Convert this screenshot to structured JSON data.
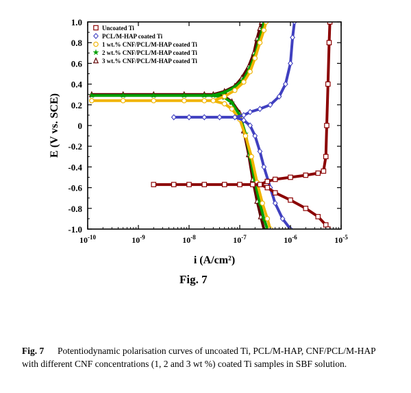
{
  "chart_data": {
    "type": "line",
    "x_scale": "log",
    "xlabel": "i (A/cm²)",
    "ylabel": "E (V vs. SCE)",
    "xlim": [
      1e-10,
      1e-05
    ],
    "ylim": [
      -1.0,
      1.0
    ],
    "x_ticks": [
      1e-10,
      1e-09,
      1e-08,
      1e-07,
      1e-06,
      1e-05
    ],
    "x_tick_labels": [
      {
        "base": "10",
        "exp": "-10"
      },
      {
        "base": "10",
        "exp": "-9"
      },
      {
        "base": "10",
        "exp": "-8"
      },
      {
        "base": "10",
        "exp": "-7"
      },
      {
        "base": "10",
        "exp": "-6"
      },
      {
        "base": "10",
        "exp": "-5"
      }
    ],
    "y_ticks": [
      1.0,
      0.8,
      0.6,
      0.4,
      0.2,
      0,
      -0.2,
      -0.4,
      -0.6,
      -0.8,
      -1.0
    ],
    "y_tick_labels": [
      "1.0",
      "0.8",
      "0.6",
      "0.4",
      "0.2",
      "0",
      "-0.2",
      "-0.4",
      "-0.6",
      "-0.8",
      "-1.0"
    ],
    "grid": false,
    "legend_position": "top-left",
    "series": [
      {
        "name": "Uncoated Ti",
        "color": "#8b0000",
        "marker": "square",
        "ecorr": -0.57,
        "points": [
          [
            2e-09,
            -0.57
          ],
          [
            5e-09,
            -0.57
          ],
          [
            1e-08,
            -0.57
          ],
          [
            2e-08,
            -0.57
          ],
          [
            5e-08,
            -0.57
          ],
          [
            1e-07,
            -0.57
          ],
          [
            1.8e-07,
            -0.57
          ],
          [
            2.5e-07,
            -0.57
          ],
          [
            3.5e-07,
            -0.54
          ],
          [
            5e-07,
            -0.52
          ],
          [
            1e-06,
            -0.5
          ],
          [
            2e-06,
            -0.48
          ],
          [
            3.5e-06,
            -0.46
          ],
          [
            4.5e-06,
            -0.44
          ],
          [
            5e-06,
            -0.3
          ],
          [
            5.2e-06,
            0.0
          ],
          [
            5.5e-06,
            0.4
          ],
          [
            5.8e-06,
            0.8
          ],
          [
            6e-06,
            1.0
          ],
          [
            3.5e-07,
            -0.6
          ],
          [
            5e-07,
            -0.65
          ],
          [
            1e-06,
            -0.72
          ],
          [
            2e-06,
            -0.8
          ],
          [
            3.5e-06,
            -0.88
          ],
          [
            5e-06,
            -0.96
          ],
          [
            5.5e-06,
            -1.0
          ]
        ]
      },
      {
        "name": "PCL/M-HAP coated Ti",
        "color": "#4040c0",
        "marker": "diamond",
        "ecorr": 0.08,
        "points": [
          [
            5e-09,
            0.08
          ],
          [
            1e-08,
            0.08
          ],
          [
            2e-08,
            0.08
          ],
          [
            4e-08,
            0.08
          ],
          [
            8e-08,
            0.08
          ],
          [
            1.2e-07,
            0.1
          ],
          [
            1.6e-07,
            0.13
          ],
          [
            2.5e-07,
            0.16
          ],
          [
            4e-07,
            0.2
          ],
          [
            6e-07,
            0.28
          ],
          [
            8e-07,
            0.4
          ],
          [
            1e-06,
            0.6
          ],
          [
            1.1e-06,
            0.85
          ],
          [
            1.2e-06,
            1.0
          ],
          [
            1.2e-07,
            0.05
          ],
          [
            1.6e-07,
            0.0
          ],
          [
            2e-07,
            -0.1
          ],
          [
            2.5e-07,
            -0.25
          ],
          [
            3e-07,
            -0.4
          ],
          [
            4e-07,
            -0.6
          ],
          [
            5e-07,
            -0.75
          ],
          [
            7e-07,
            -0.9
          ],
          [
            1e-06,
            -1.0
          ]
        ]
      },
      {
        "name": "1 wt.% CNF/PCL/M-HAP coated Ti",
        "color": "#f0b400",
        "marker": "circle",
        "ecorr": 0.24,
        "points": [
          [
            1.2e-10,
            0.24
          ],
          [
            5e-10,
            0.24
          ],
          [
            2e-09,
            0.24
          ],
          [
            8e-09,
            0.24
          ],
          [
            2e-08,
            0.24
          ],
          [
            3e-08,
            0.24
          ],
          [
            5e-08,
            0.28
          ],
          [
            8e-08,
            0.34
          ],
          [
            1.2e-07,
            0.42
          ],
          [
            1.6e-07,
            0.52
          ],
          [
            2e-07,
            0.65
          ],
          [
            2.5e-07,
            0.8
          ],
          [
            3e-07,
            0.92
          ],
          [
            3.3e-07,
            1.0
          ],
          [
            5e-08,
            0.21
          ],
          [
            7e-08,
            0.16
          ],
          [
            1e-07,
            0.06
          ],
          [
            1.3e-07,
            -0.1
          ],
          [
            1.7e-07,
            -0.3
          ],
          [
            2.2e-07,
            -0.55
          ],
          [
            2.8e-07,
            -0.75
          ],
          [
            3.5e-07,
            -0.9
          ],
          [
            4e-07,
            -1.0
          ]
        ]
      },
      {
        "name": "2 wt.% CNF/PCL/M-HAP coated Ti",
        "color": "#00a000",
        "marker": "star",
        "ecorr": 0.29,
        "points": [
          [
            1.2e-10,
            0.29
          ],
          [
            5e-10,
            0.29
          ],
          [
            2e-09,
            0.29
          ],
          [
            8e-09,
            0.29
          ],
          [
            2e-08,
            0.29
          ],
          [
            3e-08,
            0.29
          ],
          [
            5e-08,
            0.32
          ],
          [
            8e-08,
            0.37
          ],
          [
            1.2e-07,
            0.45
          ],
          [
            1.6e-07,
            0.56
          ],
          [
            2e-07,
            0.68
          ],
          [
            2.4e-07,
            0.82
          ],
          [
            2.8e-07,
            0.93
          ],
          [
            3e-07,
            1.0
          ],
          [
            5e-08,
            0.27
          ],
          [
            7e-08,
            0.22
          ],
          [
            1e-07,
            0.1
          ],
          [
            1.3e-07,
            -0.08
          ],
          [
            1.6e-07,
            -0.3
          ],
          [
            2e-07,
            -0.55
          ],
          [
            2.5e-07,
            -0.75
          ],
          [
            3e-07,
            -0.9
          ],
          [
            3.5e-07,
            -1.0
          ]
        ]
      },
      {
        "name": "3 wt.% CNF/PCL/M-HAP coated Ti",
        "color": "#600000",
        "marker": "triangle",
        "ecorr": 0.3,
        "points": [
          [
            1.2e-10,
            0.3
          ],
          [
            5e-10,
            0.3
          ],
          [
            2e-09,
            0.3
          ],
          [
            8e-09,
            0.3
          ],
          [
            2e-08,
            0.3
          ],
          [
            3e-08,
            0.3
          ],
          [
            5e-08,
            0.33
          ],
          [
            8e-08,
            0.38
          ],
          [
            1.1e-07,
            0.46
          ],
          [
            1.5e-07,
            0.57
          ],
          [
            1.9e-07,
            0.7
          ],
          [
            2.2e-07,
            0.84
          ],
          [
            2.5e-07,
            0.94
          ],
          [
            2.7e-07,
            1.0
          ],
          [
            5e-08,
            0.28
          ],
          [
            7e-08,
            0.23
          ],
          [
            1e-07,
            0.12
          ],
          [
            1.2e-07,
            -0.05
          ],
          [
            1.5e-07,
            -0.28
          ],
          [
            1.8e-07,
            -0.52
          ],
          [
            2.2e-07,
            -0.73
          ],
          [
            2.6e-07,
            -0.88
          ],
          [
            3e-07,
            -1.0
          ]
        ]
      }
    ]
  },
  "figure_label": "Fig. 7",
  "caption": {
    "number": "Fig. 7",
    "text": "Potentiodynamic polarisation curves of uncoated Ti, PCL/M-HAP, CNF/PCL/M-HAP with different CNF concentrations (1, 2 and 3 wt %) coated Ti samples in SBF solution."
  }
}
